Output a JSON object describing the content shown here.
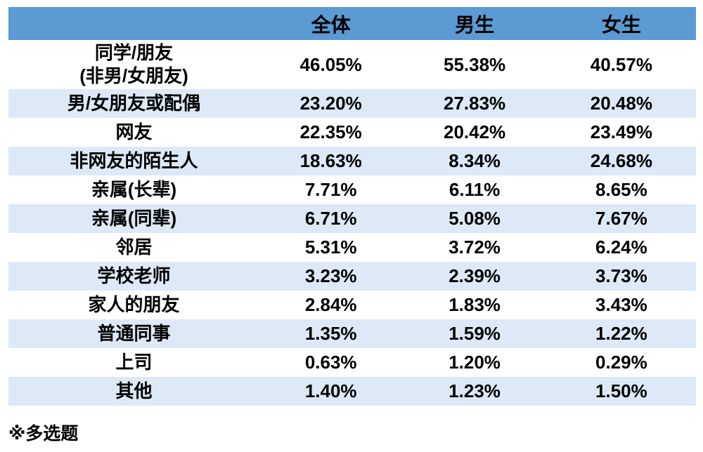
{
  "colors": {
    "header_bg": "#5b9ad3",
    "stripe_bg": "#dde9f6",
    "text": "#000000"
  },
  "chart_data": {
    "type": "table",
    "title": "",
    "columns": [
      "",
      "全体",
      "男生",
      "女生"
    ],
    "rows": [
      {
        "label": "同学/朋友\n(非男/女朋友)",
        "values": [
          "46.05%",
          "55.38%",
          "40.57%"
        ]
      },
      {
        "label": "男/女朋友或配偶",
        "values": [
          "23.20%",
          "27.83%",
          "20.48%"
        ]
      },
      {
        "label": "网友",
        "values": [
          "22.35%",
          "20.42%",
          "23.49%"
        ]
      },
      {
        "label": "非网友的陌生人",
        "values": [
          "18.63%",
          "8.34%",
          "24.68%"
        ]
      },
      {
        "label": "亲属(长辈)",
        "values": [
          "7.71%",
          "6.11%",
          "8.65%"
        ]
      },
      {
        "label": "亲属(同辈)",
        "values": [
          "6.71%",
          "5.08%",
          "7.67%"
        ]
      },
      {
        "label": "邻居",
        "values": [
          "5.31%",
          "3.72%",
          "6.24%"
        ]
      },
      {
        "label": "学校老师",
        "values": [
          "3.23%",
          "2.39%",
          "3.73%"
        ]
      },
      {
        "label": "家人的朋友",
        "values": [
          "2.84%",
          "1.83%",
          "3.43%"
        ]
      },
      {
        "label": "普通同事",
        "values": [
          "1.35%",
          "1.59%",
          "1.22%"
        ]
      },
      {
        "label": "上司",
        "values": [
          "0.63%",
          "1.20%",
          "0.29%"
        ]
      },
      {
        "label": "其他",
        "values": [
          "1.40%",
          "1.23%",
          "1.50%"
        ]
      }
    ],
    "footnote": "※多选题",
    "layout": {
      "striped": true,
      "stripe_pattern": "even-rows",
      "grid": false,
      "value_alignment": "center"
    }
  }
}
